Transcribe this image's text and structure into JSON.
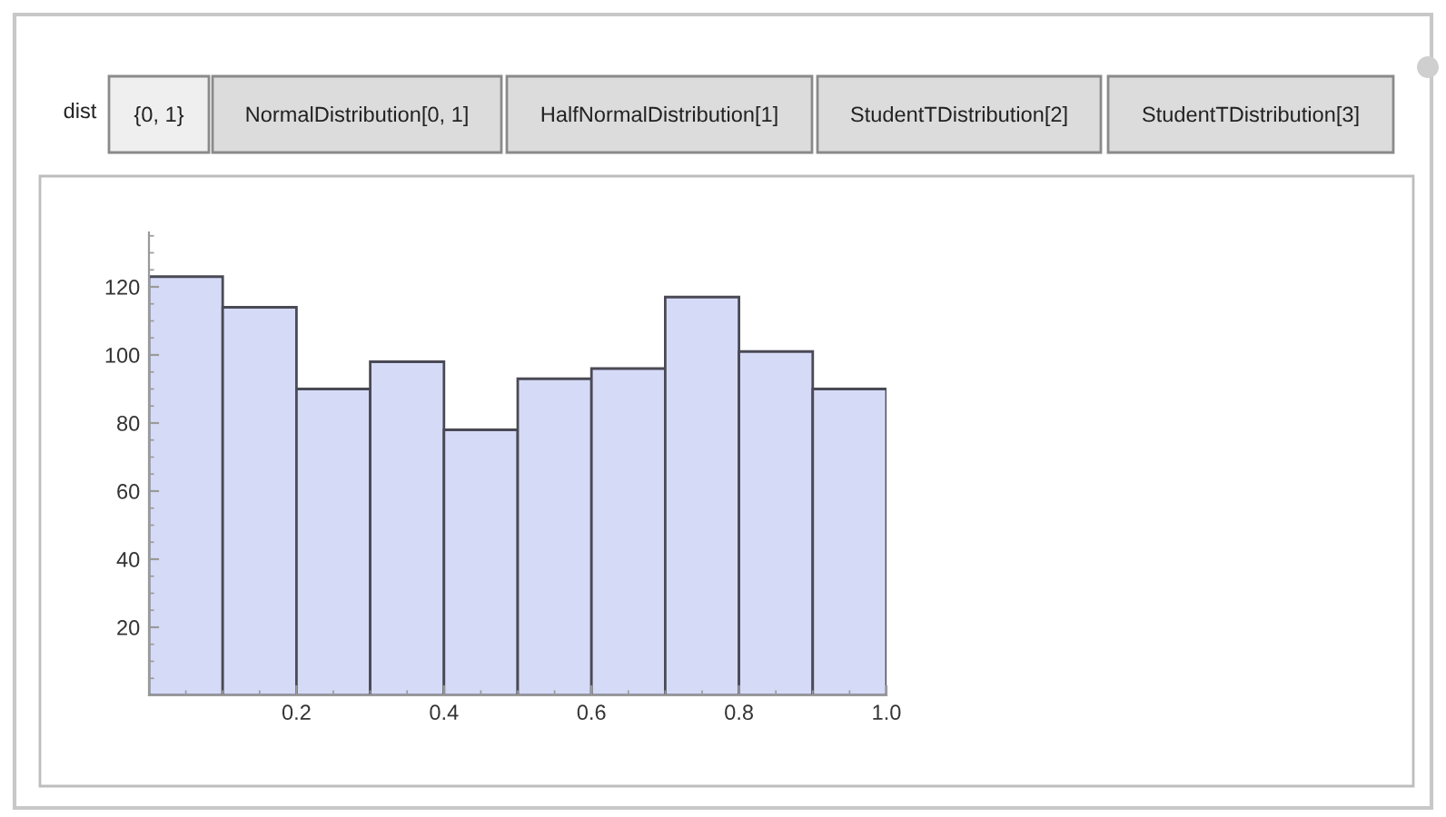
{
  "chart_data": {
    "type": "histogram",
    "bins": [
      0,
      0.1,
      0.2,
      0.3,
      0.4,
      0.5,
      0.6,
      0.7,
      0.8,
      0.9,
      1.0
    ],
    "values": [
      123,
      114,
      90,
      98,
      78,
      93,
      96,
      117,
      101,
      90
    ],
    "color": "#d5dbf7",
    "xlim": [
      0,
      1.0
    ],
    "xticks": [
      0.2,
      0.4,
      0.6,
      0.8,
      {
        "value": 1.0,
        "label": "1.0"
      }
    ],
    "ylim": [
      0,
      136
    ],
    "yticks": [
      20,
      40,
      60,
      80,
      100,
      120
    ],
    "annotations": [
      "dist",
      "{0, 1}",
      "NormalDistribution[0, 1]",
      "HalfNormalDistribution[1]",
      "StudentTDistribution[2]",
      "StudentTDistribution[3]"
    ]
  }
}
